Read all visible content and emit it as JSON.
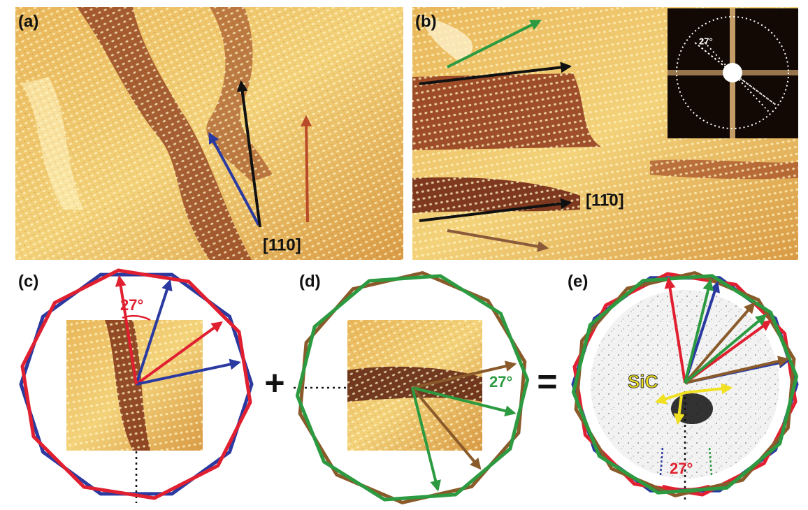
{
  "panels": [
    {
      "label": "(a)",
      "direction": "[110]"
    },
    {
      "label": "(b)",
      "direction": "[11̄0]",
      "inset_angle": "27°"
    },
    {
      "label": "(c)",
      "angle": "27°"
    },
    {
      "label": "(d)",
      "angle": "27°"
    },
    {
      "label": "(e)",
      "angle": "27°",
      "substrate": "SiC"
    }
  ],
  "operators": [
    "+",
    "="
  ]
}
